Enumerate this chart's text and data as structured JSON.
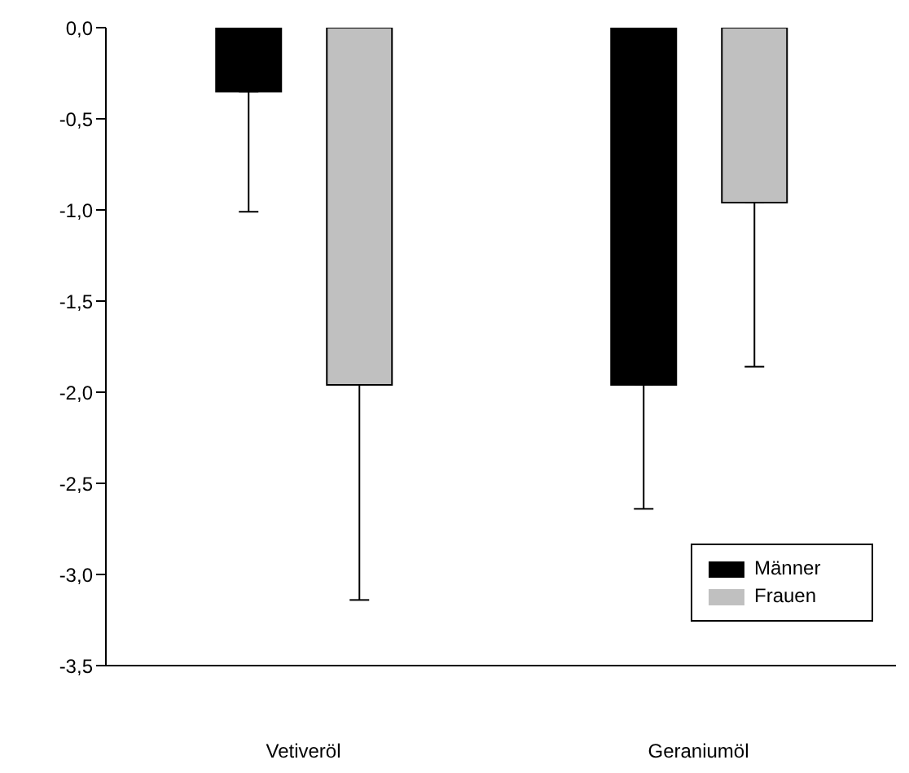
{
  "chart_data": {
    "type": "bar",
    "categories": [
      "Vetiveröl",
      "Geraniumöl"
    ],
    "series": [
      {
        "name": "Männer",
        "color": "#000000",
        "values": [
          -0.35,
          -1.96
        ],
        "errors": [
          [
            -1.01,
            -0.35
          ],
          [
            -2.64,
            -1.96
          ]
        ]
      },
      {
        "name": "Frauen",
        "color": "#c0c0c0",
        "values": [
          -1.96,
          -0.96
        ],
        "errors": [
          [
            -3.14,
            -1.96
          ],
          [
            -1.86,
            -0.96
          ]
        ]
      }
    ],
    "ylim": [
      -3.5,
      0
    ],
    "yticks": [
      {
        "value": 0,
        "label": "0,0"
      },
      {
        "value": -0.5,
        "label": "-0,5"
      },
      {
        "value": -1,
        "label": "-1,0"
      },
      {
        "value": -1.5,
        "label": "-1,5"
      },
      {
        "value": -2,
        "label": "-2,0"
      },
      {
        "value": -2.5,
        "label": "-2,5"
      },
      {
        "value": -3,
        "label": "-3,0"
      },
      {
        "value": -3.5,
        "label": "-3,5"
      }
    ],
    "grid": false,
    "legend": "bottom right"
  }
}
